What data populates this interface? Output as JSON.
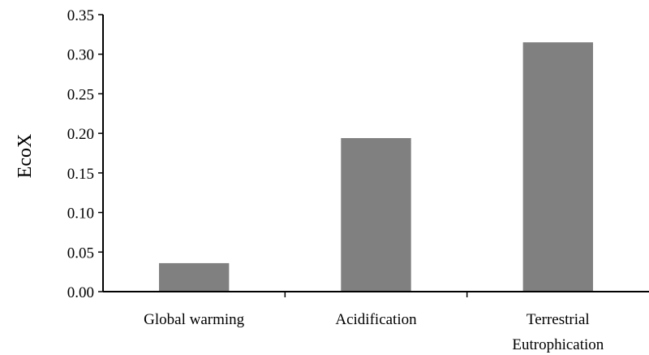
{
  "chart_data": {
    "type": "bar",
    "categories": [
      [
        "Global warming"
      ],
      [
        "Acidification"
      ],
      [
        "Terrestrial",
        "Eutrophication"
      ]
    ],
    "values": [
      0.036,
      0.194,
      0.315
    ],
    "ylabel": "EcoX",
    "xlabel": "",
    "ylim": [
      0,
      0.35
    ],
    "yticks": [
      "0.00",
      "0.05",
      "0.10",
      "0.15",
      "0.20",
      "0.25",
      "0.30",
      "0.35"
    ],
    "grid": false,
    "legend": "none",
    "bar_color": "#808080",
    "axis_color": "#000000"
  }
}
